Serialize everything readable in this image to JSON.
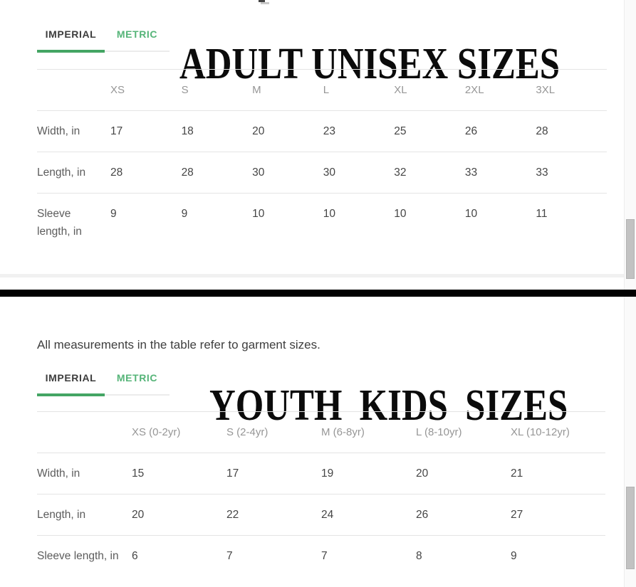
{
  "colors": {
    "accent_green_underline": "#44a564",
    "accent_green_text": "#55b478",
    "divider_black": "#020202",
    "scrollbar_thumb": "#c2c2c2"
  },
  "note": "All measurements in the table refer to garment sizes.",
  "adult_section": {
    "title": "ADULT UNISEX SIZES",
    "tabs": [
      {
        "label": "IMPERIAL",
        "active": true
      },
      {
        "label": "METRIC",
        "active": false
      }
    ],
    "table": {
      "columns": [
        "XS",
        "S",
        "M",
        "L",
        "XL",
        "2XL",
        "3XL"
      ],
      "rows": [
        {
          "label": "Width, in",
          "values": [
            "17",
            "18",
            "20",
            "23",
            "25",
            "26",
            "28"
          ]
        },
        {
          "label": "Length, in",
          "values": [
            "28",
            "28",
            "30",
            "30",
            "32",
            "33",
            "33"
          ]
        },
        {
          "label": "Sleeve length, in",
          "values": [
            "9",
            "9",
            "10",
            "10",
            "10",
            "10",
            "11"
          ]
        }
      ]
    }
  },
  "youth_section": {
    "title": "YOUTH KIDS SIZES",
    "tabs": [
      {
        "label": "IMPERIAL",
        "active": true
      },
      {
        "label": "METRIC",
        "active": false
      }
    ],
    "table": {
      "columns": [
        "XS (0-2yr)",
        "S (2-4yr)",
        "M (6-8yr)",
        "L (8-10yr)",
        "XL (10-12yr)"
      ],
      "rows": [
        {
          "label": "Width, in",
          "values": [
            "15",
            "17",
            "19",
            "20",
            "21"
          ]
        },
        {
          "label": "Length, in",
          "values": [
            "20",
            "22",
            "24",
            "26",
            "27"
          ]
        },
        {
          "label": "Sleeve length, in",
          "values": [
            "6",
            "7",
            "7",
            "8",
            "9"
          ]
        }
      ]
    }
  }
}
